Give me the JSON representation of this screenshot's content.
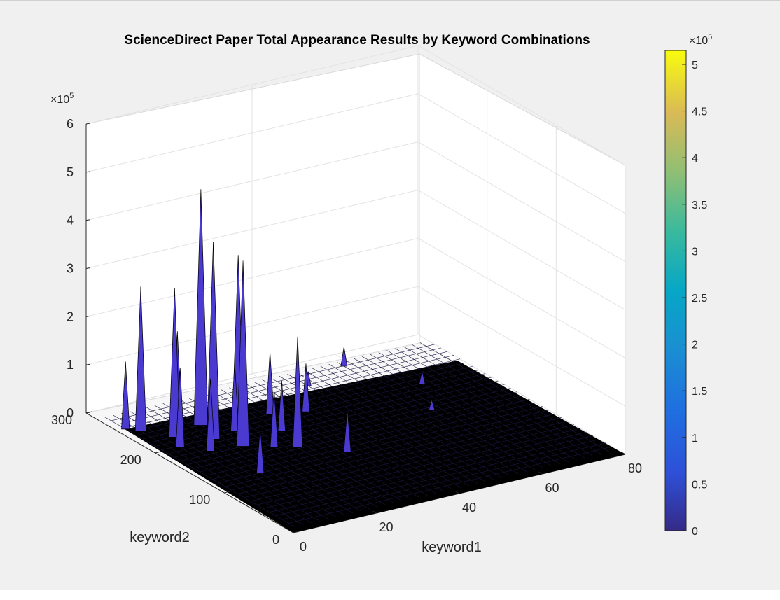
{
  "chart_data": {
    "type": "surface",
    "title": "ScienceDirect Paper Total Appearance Results by Keyword Combinations",
    "xlabel": "keyword1",
    "ylabel": "keyword2",
    "zlabel": "",
    "xlim": [
      0,
      80
    ],
    "ylim": [
      0,
      300
    ],
    "zlim": [
      0,
      600000
    ],
    "x_ticks": [
      "0",
      "20",
      "40",
      "60",
      "80"
    ],
    "y_ticks": [
      "0",
      "100",
      "200",
      "300"
    ],
    "z_ticks": [
      "0",
      "1",
      "2",
      "3",
      "4",
      "5",
      "6"
    ],
    "z_exponent_label": "×10",
    "z_exponent_power": "5",
    "colormap": "parula",
    "colorbar": {
      "ticks": [
        "0",
        "0.5",
        "1",
        "1.5",
        "2",
        "2.5",
        "3",
        "3.5",
        "4",
        "4.5",
        "5"
      ],
      "range": [
        0,
        515000
      ],
      "exponent_label": "×10",
      "exponent_power": "5"
    },
    "grid": true,
    "peaks": [
      {
        "keyword1": 16,
        "keyword2": 230,
        "value": 490000
      },
      {
        "keyword1": 8,
        "keyword2": 220,
        "value": 310000
      },
      {
        "keyword1": 14,
        "keyword2": 200,
        "value": 410000
      },
      {
        "keyword1": 17,
        "keyword2": 175,
        "value": 385000
      },
      {
        "keyword1": 25,
        "keyword2": 230,
        "value": 335000
      },
      {
        "keyword1": 4,
        "keyword2": 245,
        "value": 300000
      },
      {
        "keyword1": 26,
        "keyword2": 150,
        "value": 230000
      },
      {
        "keyword1": 31,
        "keyword2": 220,
        "value": 130000
      },
      {
        "keyword1": 38,
        "keyword2": 210,
        "value": 100000
      },
      {
        "keyword1": 12,
        "keyword2": 240,
        "value": 195000
      },
      {
        "keyword1": 2,
        "keyword2": 255,
        "value": 140000
      },
      {
        "keyword1": 6,
        "keyword2": 200,
        "value": 165000
      },
      {
        "keyword1": 10,
        "keyword2": 180,
        "value": 150000
      },
      {
        "keyword1": 20,
        "keyword2": 205,
        "value": 140000
      },
      {
        "keyword1": 22,
        "keyword2": 160,
        "value": 120000
      },
      {
        "keyword1": 28,
        "keyword2": 185,
        "value": 105000
      },
      {
        "keyword1": 33,
        "keyword2": 120,
        "value": 90000
      },
      {
        "keyword1": 12,
        "keyword2": 120,
        "value": 95000
      },
      {
        "keyword1": 58,
        "keyword2": 275,
        "value": 40000
      },
      {
        "keyword1": 46,
        "keyword2": 255,
        "value": 30000
      },
      {
        "keyword1": 60,
        "keyword2": 160,
        "value": 22000
      },
      {
        "keyword1": 66,
        "keyword2": 210,
        "value": 28000
      }
    ]
  }
}
